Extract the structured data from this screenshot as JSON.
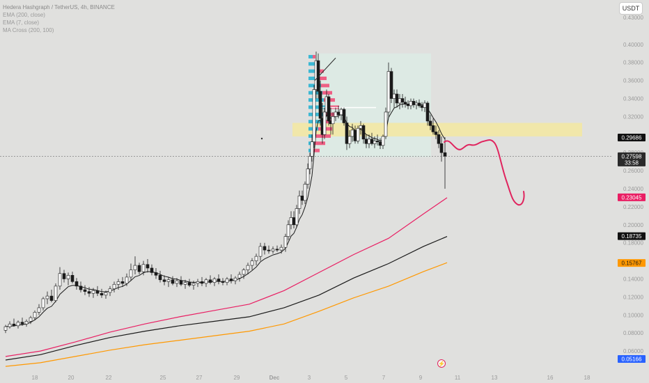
{
  "header": {
    "symbol_line": "Hedera Hashgraph / TetherUS, 4h, BINANCE",
    "indicators": [
      "EMA (200, close)",
      "EMA (7, close)",
      "MA Cross (200, 100)"
    ]
  },
  "currency_button": "USDT",
  "colors": {
    "background": "#e0e0de",
    "up_candle": "#ffffff",
    "down_candle": "#1a1a1a",
    "ema7": "#1a1a1a",
    "ema200": "#e91e63",
    "ma200": "#1a1a1a",
    "ma100": "#ff9800",
    "price_line": "#808080",
    "forecast": "#e0245e",
    "zone": "#f3e8a4",
    "range_box": "#dcebe5",
    "vp_up": "#3bb8d4",
    "vp_down": "#ee5f84"
  },
  "chart_data": {
    "type": "candlestick",
    "timeframe": "4h",
    "ylim": [
      0.04,
      0.44
    ],
    "x_ticks": [
      "18",
      "20",
      "22",
      "25",
      "27",
      "29",
      "Dec",
      "3",
      "5",
      "7",
      "9",
      "11",
      "13",
      "16",
      "18"
    ],
    "y_ticks": [
      "0.43000",
      "0.40000",
      "0.38000",
      "0.36000",
      "0.34000",
      "0.32000",
      "0.28000",
      "0.26000",
      "0.24000",
      "0.22000",
      "0.20000",
      "0.18000",
      "0.14000",
      "0.12000",
      "0.10000",
      "0.08000",
      "0.06000"
    ],
    "price_labels": [
      {
        "id": "last-price",
        "value": "0.27598",
        "sub": "33:58"
      },
      {
        "id": "level-marker",
        "value": "0.29686"
      },
      {
        "id": "ema200-value",
        "value": "0.23045"
      },
      {
        "id": "ma200-value",
        "value": "0.18735"
      },
      {
        "id": "ma100-value",
        "value": "0.15767"
      },
      {
        "id": "low-marker",
        "value": "0.05166"
      }
    ],
    "horizontal_line": 0.33,
    "zone": [
      0.298,
      0.313
    ],
    "series": [
      {
        "name": "EMA (200, close)",
        "points": [
          [
            0,
            0.054
          ],
          [
            50,
            0.06
          ],
          [
            100,
            0.07
          ],
          [
            150,
            0.081
          ],
          [
            200,
            0.09
          ],
          [
            250,
            0.098
          ],
          [
            300,
            0.105
          ],
          [
            350,
            0.112
          ],
          [
            400,
            0.127
          ],
          [
            450,
            0.147
          ],
          [
            500,
            0.167
          ],
          [
            550,
            0.185
          ],
          [
            600,
            0.212
          ],
          [
            634,
            0.23
          ]
        ]
      },
      {
        "name": "MA Cross (200)",
        "points": [
          [
            0,
            0.05
          ],
          [
            50,
            0.056
          ],
          [
            100,
            0.066
          ],
          [
            150,
            0.075
          ],
          [
            200,
            0.082
          ],
          [
            250,
            0.088
          ],
          [
            300,
            0.093
          ],
          [
            350,
            0.098
          ],
          [
            400,
            0.108
          ],
          [
            450,
            0.122
          ],
          [
            500,
            0.141
          ],
          [
            550,
            0.157
          ],
          [
            600,
            0.176
          ],
          [
            634,
            0.187
          ]
        ]
      },
      {
        "name": "MA Cross (100)",
        "points": [
          [
            0,
            0.043
          ],
          [
            50,
            0.047
          ],
          [
            100,
            0.054
          ],
          [
            150,
            0.061
          ],
          [
            200,
            0.067
          ],
          [
            250,
            0.072
          ],
          [
            300,
            0.077
          ],
          [
            350,
            0.082
          ],
          [
            400,
            0.09
          ],
          [
            450,
            0.104
          ],
          [
            500,
            0.119
          ],
          [
            550,
            0.132
          ],
          [
            600,
            0.148
          ],
          [
            634,
            0.158
          ]
        ]
      }
    ],
    "candles": [
      [
        0,
        0.083,
        0.089,
        0.08,
        0.087
      ],
      [
        6,
        0.087,
        0.093,
        0.085,
        0.09
      ],
      [
        12,
        0.09,
        0.096,
        0.087,
        0.088
      ],
      [
        18,
        0.088,
        0.094,
        0.085,
        0.092
      ],
      [
        24,
        0.092,
        0.097,
        0.088,
        0.09
      ],
      [
        30,
        0.09,
        0.095,
        0.087,
        0.093
      ],
      [
        36,
        0.093,
        0.099,
        0.09,
        0.097
      ],
      [
        42,
        0.097,
        0.105,
        0.094,
        0.103
      ],
      [
        48,
        0.103,
        0.112,
        0.1,
        0.108
      ],
      [
        54,
        0.108,
        0.12,
        0.105,
        0.118
      ],
      [
        60,
        0.118,
        0.126,
        0.112,
        0.121
      ],
      [
        66,
        0.121,
        0.128,
        0.114,
        0.116
      ],
      [
        72,
        0.116,
        0.135,
        0.114,
        0.132
      ],
      [
        78,
        0.132,
        0.153,
        0.128,
        0.146
      ],
      [
        84,
        0.146,
        0.15,
        0.136,
        0.14
      ],
      [
        90,
        0.14,
        0.147,
        0.133,
        0.144
      ],
      [
        96,
        0.144,
        0.148,
        0.135,
        0.137
      ],
      [
        102,
        0.137,
        0.141,
        0.128,
        0.132
      ],
      [
        108,
        0.132,
        0.137,
        0.125,
        0.128
      ],
      [
        114,
        0.128,
        0.133,
        0.122,
        0.126
      ],
      [
        120,
        0.126,
        0.131,
        0.12,
        0.124
      ],
      [
        126,
        0.124,
        0.13,
        0.119,
        0.127
      ],
      [
        132,
        0.127,
        0.132,
        0.121,
        0.124
      ],
      [
        138,
        0.124,
        0.129,
        0.119,
        0.122
      ],
      [
        144,
        0.122,
        0.127,
        0.118,
        0.125
      ],
      [
        150,
        0.125,
        0.132,
        0.121,
        0.129
      ],
      [
        156,
        0.129,
        0.137,
        0.125,
        0.134
      ],
      [
        162,
        0.134,
        0.14,
        0.128,
        0.137
      ],
      [
        168,
        0.137,
        0.142,
        0.131,
        0.135
      ],
      [
        174,
        0.135,
        0.146,
        0.132,
        0.142
      ],
      [
        180,
        0.142,
        0.157,
        0.138,
        0.15
      ],
      [
        186,
        0.15,
        0.165,
        0.145,
        0.155
      ],
      [
        192,
        0.155,
        0.158,
        0.145,
        0.148
      ],
      [
        198,
        0.148,
        0.16,
        0.144,
        0.156
      ],
      [
        204,
        0.156,
        0.162,
        0.147,
        0.152
      ],
      [
        210,
        0.152,
        0.156,
        0.144,
        0.147
      ],
      [
        216,
        0.147,
        0.152,
        0.14,
        0.144
      ],
      [
        222,
        0.144,
        0.149,
        0.136,
        0.139
      ],
      [
        228,
        0.139,
        0.144,
        0.133,
        0.137
      ],
      [
        234,
        0.137,
        0.142,
        0.131,
        0.139
      ],
      [
        240,
        0.139,
        0.143,
        0.133,
        0.135
      ],
      [
        246,
        0.135,
        0.141,
        0.131,
        0.138
      ],
      [
        252,
        0.138,
        0.143,
        0.132,
        0.134
      ],
      [
        258,
        0.134,
        0.139,
        0.129,
        0.136
      ],
      [
        264,
        0.136,
        0.14,
        0.131,
        0.133
      ],
      [
        270,
        0.133,
        0.138,
        0.128,
        0.135
      ],
      [
        276,
        0.135,
        0.14,
        0.131,
        0.137
      ],
      [
        282,
        0.137,
        0.142,
        0.132,
        0.135
      ],
      [
        288,
        0.135,
        0.141,
        0.131,
        0.139
      ],
      [
        294,
        0.139,
        0.144,
        0.134,
        0.136
      ],
      [
        300,
        0.136,
        0.142,
        0.132,
        0.14
      ],
      [
        306,
        0.14,
        0.145,
        0.134,
        0.137
      ],
      [
        312,
        0.137,
        0.141,
        0.133,
        0.136
      ],
      [
        318,
        0.136,
        0.142,
        0.133,
        0.14
      ],
      [
        324,
        0.14,
        0.145,
        0.135,
        0.138
      ],
      [
        330,
        0.138,
        0.143,
        0.134,
        0.141
      ],
      [
        336,
        0.141,
        0.148,
        0.137,
        0.145
      ],
      [
        342,
        0.145,
        0.152,
        0.14,
        0.15
      ],
      [
        348,
        0.15,
        0.158,
        0.145,
        0.155
      ],
      [
        354,
        0.155,
        0.163,
        0.15,
        0.16
      ],
      [
        360,
        0.16,
        0.168,
        0.155,
        0.165
      ],
      [
        366,
        0.165,
        0.18,
        0.16,
        0.176
      ],
      [
        372,
        0.176,
        0.18,
        0.167,
        0.172
      ],
      [
        378,
        0.172,
        0.177,
        0.168,
        0.171
      ],
      [
        384,
        0.171,
        0.176,
        0.168,
        0.173
      ],
      [
        390,
        0.173,
        0.177,
        0.17,
        0.172
      ],
      [
        396,
        0.172,
        0.178,
        0.168,
        0.175
      ],
      [
        402,
        0.175,
        0.19,
        0.17,
        0.187
      ],
      [
        406,
        0.187,
        0.205,
        0.183,
        0.2
      ],
      [
        410,
        0.2,
        0.215,
        0.195,
        0.208
      ],
      [
        414,
        0.208,
        0.215,
        0.196,
        0.2
      ],
      [
        418,
        0.2,
        0.222,
        0.197,
        0.218
      ],
      [
        422,
        0.218,
        0.238,
        0.212,
        0.232
      ],
      [
        426,
        0.232,
        0.238,
        0.222,
        0.227
      ],
      [
        430,
        0.227,
        0.248,
        0.223,
        0.245
      ],
      [
        434,
        0.245,
        0.268,
        0.24,
        0.262
      ],
      [
        437,
        0.262,
        0.28,
        0.256,
        0.276
      ],
      [
        440,
        0.276,
        0.3,
        0.27,
        0.292
      ],
      [
        443,
        0.292,
        0.355,
        0.285,
        0.35
      ],
      [
        446,
        0.35,
        0.392,
        0.34,
        0.382
      ],
      [
        449,
        0.382,
        0.39,
        0.34,
        0.348
      ],
      [
        452,
        0.348,
        0.36,
        0.31,
        0.318
      ],
      [
        455,
        0.318,
        0.335,
        0.29,
        0.3
      ],
      [
        458,
        0.3,
        0.33,
        0.295,
        0.325
      ],
      [
        461,
        0.325,
        0.35,
        0.32,
        0.342
      ],
      [
        464,
        0.342,
        0.345,
        0.31,
        0.315
      ],
      [
        467,
        0.315,
        0.33,
        0.3,
        0.312
      ],
      [
        470,
        0.312,
        0.325,
        0.3,
        0.32
      ],
      [
        474,
        0.32,
        0.33,
        0.315,
        0.325
      ],
      [
        478,
        0.325,
        0.332,
        0.318,
        0.322
      ],
      [
        482,
        0.322,
        0.33,
        0.316,
        0.328
      ],
      [
        486,
        0.328,
        0.33,
        0.31,
        0.313
      ],
      [
        490,
        0.313,
        0.32,
        0.283,
        0.29
      ],
      [
        494,
        0.29,
        0.305,
        0.285,
        0.298
      ],
      [
        498,
        0.298,
        0.312,
        0.292,
        0.305
      ],
      [
        502,
        0.305,
        0.31,
        0.29,
        0.293
      ],
      [
        506,
        0.293,
        0.31,
        0.29,
        0.307
      ],
      [
        510,
        0.307,
        0.315,
        0.3,
        0.31
      ],
      [
        514,
        0.31,
        0.312,
        0.29,
        0.295
      ],
      [
        518,
        0.295,
        0.3,
        0.285,
        0.29
      ],
      [
        522,
        0.29,
        0.3,
        0.285,
        0.295
      ],
      [
        526,
        0.295,
        0.302,
        0.288,
        0.29
      ],
      [
        530,
        0.29,
        0.298,
        0.285,
        0.293
      ],
      [
        534,
        0.293,
        0.3,
        0.288,
        0.292
      ],
      [
        538,
        0.292,
        0.296,
        0.284,
        0.288
      ],
      [
        542,
        0.288,
        0.3,
        0.284,
        0.298
      ],
      [
        546,
        0.298,
        0.33,
        0.295,
        0.325
      ],
      [
        550,
        0.325,
        0.38,
        0.32,
        0.37
      ],
      [
        554,
        0.37,
        0.374,
        0.335,
        0.34
      ],
      [
        558,
        0.34,
        0.35,
        0.33,
        0.345
      ],
      [
        562,
        0.345,
        0.35,
        0.33,
        0.335
      ],
      [
        566,
        0.335,
        0.345,
        0.328,
        0.34
      ],
      [
        570,
        0.34,
        0.345,
        0.33,
        0.336
      ],
      [
        574,
        0.336,
        0.342,
        0.33,
        0.334
      ],
      [
        578,
        0.334,
        0.338,
        0.328,
        0.332
      ],
      [
        582,
        0.332,
        0.34,
        0.328,
        0.337
      ],
      [
        586,
        0.337,
        0.34,
        0.33,
        0.333
      ],
      [
        590,
        0.333,
        0.338,
        0.328,
        0.335
      ],
      [
        594,
        0.335,
        0.339,
        0.33,
        0.332
      ],
      [
        598,
        0.332,
        0.336,
        0.326,
        0.33
      ],
      [
        602,
        0.33,
        0.338,
        0.325,
        0.335
      ],
      [
        606,
        0.335,
        0.337,
        0.31,
        0.315
      ],
      [
        610,
        0.315,
        0.322,
        0.305,
        0.31
      ],
      [
        614,
        0.31,
        0.318,
        0.3,
        0.303
      ],
      [
        618,
        0.303,
        0.31,
        0.295,
        0.3
      ],
      [
        622,
        0.3,
        0.305,
        0.285,
        0.29
      ],
      [
        626,
        0.29,
        0.298,
        0.27,
        0.28
      ],
      [
        631,
        0.28,
        0.297,
        0.24,
        0.276
      ]
    ]
  }
}
